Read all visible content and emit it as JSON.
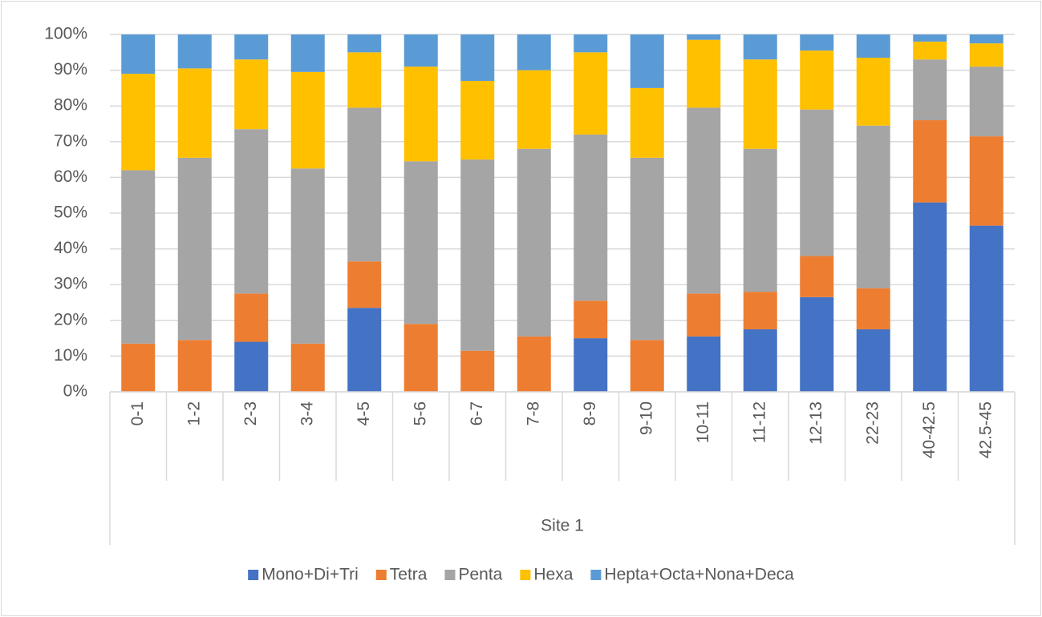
{
  "chart_data": {
    "type": "stacked_bar_100",
    "x_label": "Site 1",
    "categories": [
      "0-1",
      "1-2",
      "2-3",
      "3-4",
      "4-5",
      "5-6",
      "6-7",
      "7-8",
      "8-9",
      "9-10",
      "10-11",
      "11-12",
      "12-13",
      "22-23",
      "40-42.5",
      "42.5-45"
    ],
    "series": [
      {
        "name": "Mono+Di+Tri",
        "color": "#4472c4",
        "values": [
          0,
          0,
          14,
          0,
          23.5,
          0,
          0,
          0,
          15,
          0,
          15.5,
          17.5,
          26.5,
          17.5,
          53,
          46.5
        ]
      },
      {
        "name": "Tetra",
        "color": "#ed7d31",
        "values": [
          13.5,
          14.5,
          13.5,
          13.5,
          13,
          19,
          11.5,
          15.5,
          10.5,
          14.5,
          12,
          10.5,
          11.5,
          11.5,
          23,
          25
        ]
      },
      {
        "name": "Penta",
        "color": "#a5a5a5",
        "values": [
          48.5,
          51,
          46,
          49,
          43,
          45.5,
          53.5,
          52.5,
          46.5,
          51,
          52,
          40,
          41,
          45.5,
          17,
          19.5
        ]
      },
      {
        "name": "Hexa",
        "color": "#ffc000",
        "values": [
          27,
          25,
          19.5,
          27,
          15.5,
          26.5,
          22,
          22,
          23,
          19.5,
          19,
          25,
          16.5,
          19,
          5,
          6.5
        ]
      },
      {
        "name": "Hepta+Octa+Nona+Deca",
        "color": "#5b9bd5",
        "values": [
          11,
          9.5,
          7,
          10.5,
          5,
          9,
          13,
          10,
          5,
          15,
          1.5,
          7,
          4.5,
          6.5,
          2,
          2.5
        ]
      }
    ],
    "ylim": [
      0,
      100
    ],
    "yticks": [
      {
        "value": 0,
        "label": "0%"
      },
      {
        "value": 10,
        "label": "10%"
      },
      {
        "value": 20,
        "label": "20%"
      },
      {
        "value": 30,
        "label": "30%"
      },
      {
        "value": 40,
        "label": "40%"
      },
      {
        "value": 50,
        "label": "50%"
      },
      {
        "value": 60,
        "label": "60%"
      },
      {
        "value": 70,
        "label": "70%"
      },
      {
        "value": 80,
        "label": "80%"
      },
      {
        "value": 90,
        "label": "90%"
      },
      {
        "value": 100,
        "label": "100%"
      }
    ],
    "grid": true,
    "legend": "bottom"
  }
}
